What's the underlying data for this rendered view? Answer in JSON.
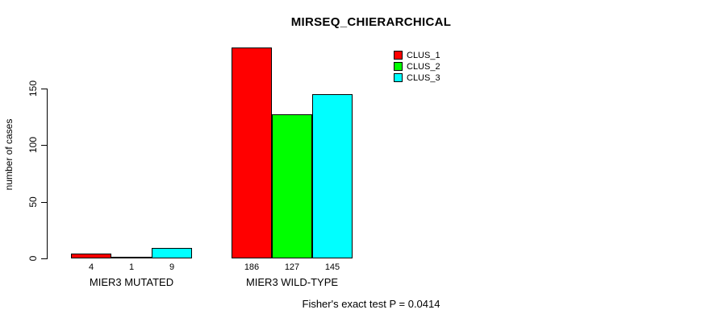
{
  "figure": {
    "background": "#FFFFFF",
    "text_color": "#000000"
  },
  "chart_data": {
    "type": "bar",
    "title": "MIRSEQ_CHIERARCHICAL",
    "categories": [
      "MIER3 MUTATED",
      "MIER3 WILD-TYPE"
    ],
    "series": [
      {
        "name": "CLUS_1",
        "color": "#FF0000",
        "values": [
          4,
          186
        ]
      },
      {
        "name": "CLUS_2",
        "color": "#00FF00",
        "values": [
          1,
          127
        ]
      },
      {
        "name": "CLUS_3",
        "color": "#00FFFF",
        "values": [
          9,
          145
        ]
      }
    ],
    "bar_value_labels": [
      [
        "4",
        "1",
        "9"
      ],
      [
        "186",
        "127",
        "145"
      ]
    ],
    "xlabel": "",
    "ylabel": "number of cases",
    "yticks": [
      0,
      50,
      100,
      150
    ],
    "ylim": [
      0,
      186
    ],
    "grid": false,
    "legend_position": "top-right",
    "legend_entries": [
      "CLUS_1",
      "CLUS_2",
      "CLUS_3"
    ],
    "annotation": "Fisher's exact test P = 0.0414",
    "axis_color": "#000000"
  }
}
